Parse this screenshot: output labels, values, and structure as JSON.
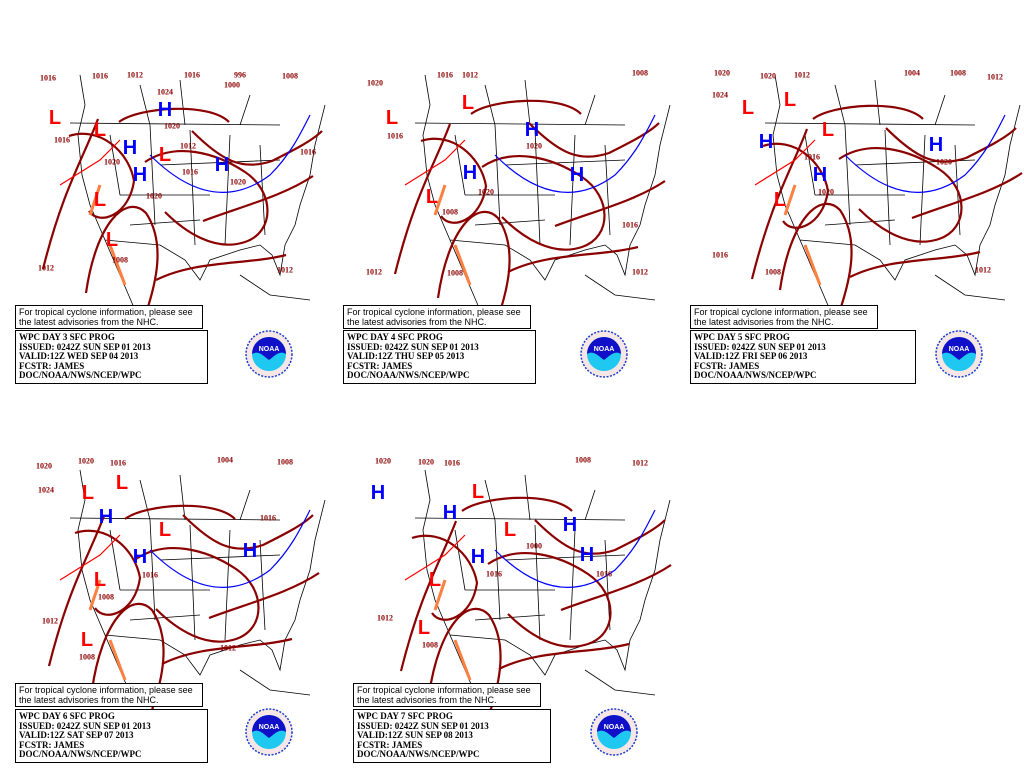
{
  "colors": {
    "isobar": "#8b0000",
    "high": "#0000ff",
    "low": "#ff0000",
    "trough": "#ff8040",
    "occluded": "#a040ff"
  },
  "panels": [
    {
      "note_line1": "For tropical cyclone information, please see",
      "note_line2": "the latest advisories from the NHC.",
      "title": "WPC DAY 3 SFC PROG",
      "issued": "ISSUED: 0242Z SUN SEP 01 2013",
      "valid": "VALID:12Z WED SEP 04 2013",
      "fcstr": "FCSTR: JAMES",
      "office": "DOC/NOAA/NWS/NCEP/WPC",
      "logo_text": "NOAA",
      "symbols": [
        "L",
        "L",
        "H",
        "H",
        "L",
        "H",
        "H",
        "L",
        "L"
      ],
      "labels": [
        "1016",
        "1016",
        "1012",
        "1016",
        "996",
        "1000",
        "1008",
        "1016",
        "1024",
        "1020",
        "1020",
        "1012",
        "1016",
        "1020",
        "1020",
        "1016",
        "1012",
        "1008",
        "1012"
      ]
    },
    {
      "note_line1": "For tropical cyclone information, please see",
      "note_line2": "the latest advisories from the NHC.",
      "title": "WPC DAY 4 SFC PROG",
      "issued": "ISSUED: 0242Z SUN SEP 01 2013",
      "valid": "VALID:12Z THU SEP 05 2013",
      "fcstr": "FCSTR: JAMES",
      "office": "DOC/NOAA/NWS/NCEP/WPC",
      "logo_text": "NOAA",
      "symbols": [
        "L",
        "L",
        "H",
        "H",
        "H",
        "L"
      ],
      "labels": [
        "1020",
        "1016",
        "1012",
        "1008",
        "1016",
        "1020",
        "1008",
        "1016",
        "1012",
        "1008",
        "1012",
        "1020"
      ]
    },
    {
      "note_line1": "For tropical cyclone information, please see",
      "note_line2": "the latest advisories from the NHC.",
      "title": "WPC DAY 5 SFC PROG",
      "issued": "ISSUED: 0242Z SUN SEP 01 2013",
      "valid": "VALID:12Z FRI SEP 06 2013",
      "fcstr": "FCSTR: JAMES",
      "office": "DOC/NOAA/NWS/NCEP/WPC",
      "logo_text": "NOAA",
      "symbols": [
        "L",
        "L",
        "L",
        "H",
        "H",
        "H",
        "L"
      ],
      "labels": [
        "1020",
        "1020",
        "1012",
        "1004",
        "1008",
        "1012",
        "1024",
        "1016",
        "1020",
        "1020",
        "1016",
        "1008",
        "1012"
      ]
    },
    {
      "note_line1": "For tropical cyclone information, please see",
      "note_line2": "the latest advisories from the NHC.",
      "title": "WPC DAY 6 SFC PROG",
      "issued": "ISSUED: 0242Z SUN SEP 01 2013",
      "valid": "VALID:12Z SAT SEP 07 2013",
      "fcstr": "FCSTR: JAMES",
      "office": "DOC/NOAA/NWS/NCEP/WPC",
      "logo_text": "NOAA",
      "symbols": [
        "L",
        "L",
        "H",
        "H",
        "L",
        "H",
        "L",
        "L"
      ],
      "labels": [
        "1020",
        "1020",
        "1016",
        "1024",
        "1004",
        "1008",
        "1016",
        "1016",
        "1008",
        "1012",
        "1008",
        "1012"
      ]
    },
    {
      "note_line1": "For tropical cyclone information, please see",
      "note_line2": "the latest advisories from the NHC.",
      "title": "WPC DAY 7 SFC PROG",
      "issued": "ISSUED: 0242Z SUN SEP 01 2013",
      "valid": "VALID:12Z SUN SEP 08 2013",
      "fcstr": "FCSTR: JAMES",
      "office": "DOC/NOAA/NWS/NCEP/WPC",
      "logo_text": "NOAA",
      "symbols": [
        "H",
        "L",
        "H",
        "L",
        "H",
        "H",
        "H",
        "L",
        "L"
      ],
      "labels": [
        "1020",
        "1020",
        "1016",
        "1008",
        "1012",
        "1012",
        "1016",
        "1008",
        "1016",
        "1000"
      ]
    }
  ]
}
